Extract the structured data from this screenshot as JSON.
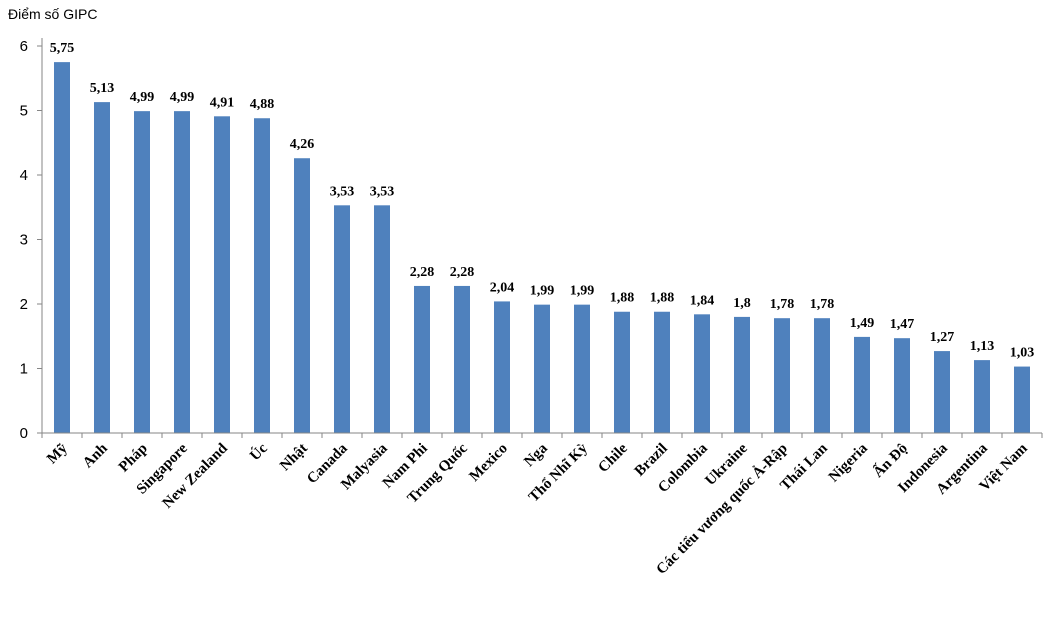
{
  "chart_data": {
    "type": "bar",
    "ylabel": "Điểm số GIPC",
    "ylim": [
      0,
      6
    ],
    "yticks": [
      "0",
      "1",
      "2",
      "3",
      "4",
      "5",
      "6"
    ],
    "grid": false,
    "bar_color": "#4f81bd",
    "categories": [
      "Mỹ",
      "Anh",
      "Pháp",
      "Singapore",
      "New Zealand",
      "Úc",
      "Nhật",
      "Canada",
      "Malyasia",
      "Nam Phi",
      "Trung Quốc",
      "Mexico",
      "Nga",
      "Thổ Nhĩ Kỳ",
      "Chile",
      "Brazil",
      "Colombia",
      "Ukraine",
      "Các tiểu vương quốc Ả-Rập",
      "Thái Lan",
      "Nigeria",
      "Ấn Độ",
      "Indonesia",
      "Argentina",
      "Việt Nam"
    ],
    "values": [
      5.75,
      5.13,
      4.99,
      4.99,
      4.91,
      4.88,
      4.26,
      3.53,
      3.53,
      2.28,
      2.28,
      2.04,
      1.99,
      1.99,
      1.88,
      1.88,
      1.84,
      1.8,
      1.78,
      1.78,
      1.49,
      1.47,
      1.27,
      1.13,
      1.03
    ],
    "value_labels": [
      "5,75",
      "5,13",
      "4,99",
      "4,99",
      "4,91",
      "4,88",
      "4,26",
      "3,53",
      "3,53",
      "2,28",
      "2,28",
      "2,04",
      "1,99",
      "1,99",
      "1,88",
      "1,88",
      "1,84",
      "1,8",
      "1,78",
      "1,78",
      "1,49",
      "1,47",
      "1,27",
      "1,13",
      "1,03"
    ]
  }
}
